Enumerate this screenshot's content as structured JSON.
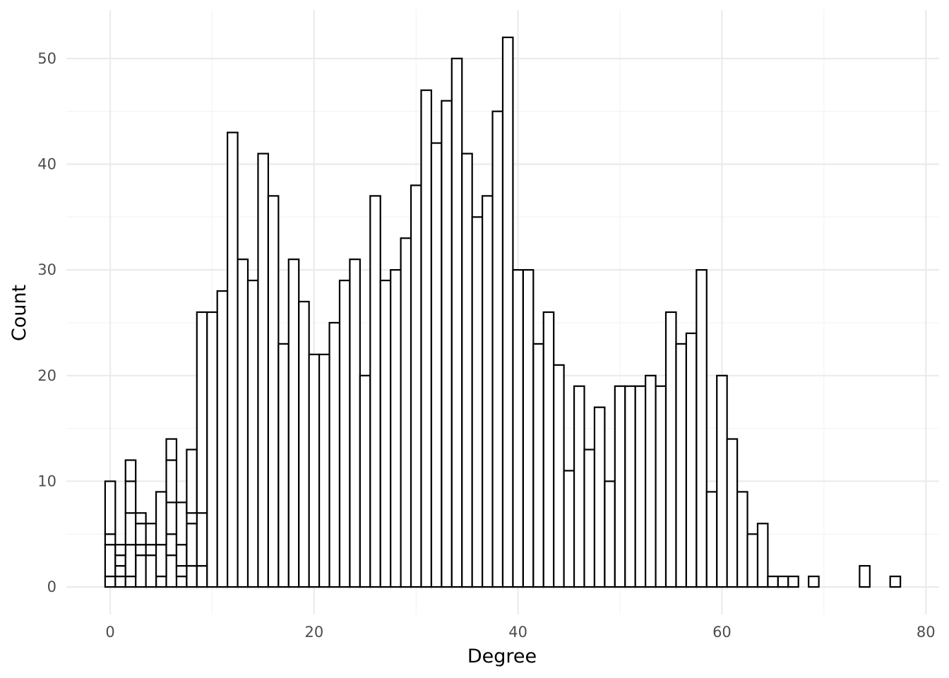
{
  "chart_data": {
    "type": "bar",
    "subtype": "histogram",
    "xlabel": "Degree",
    "ylabel": "Count",
    "xlim": [
      -4.3,
      81.3
    ],
    "ylim": [
      -2.6,
      54.6
    ],
    "x_ticks": [
      0,
      20,
      40,
      60,
      80
    ],
    "y_ticks": [
      0,
      10,
      20,
      30,
      40,
      50
    ],
    "grid": true,
    "bin_width": 1,
    "stacked": true,
    "series": [
      {
        "x": [
          0,
          1,
          2,
          3,
          4,
          5,
          6,
          7,
          8,
          9
        ],
        "values": [
          1,
          1,
          1,
          0,
          0,
          1,
          0,
          1,
          2,
          2
        ]
      },
      {
        "x": [
          0,
          1,
          2,
          3,
          4,
          5,
          6,
          7,
          8,
          9
        ],
        "values": [
          3,
          1,
          0,
          3,
          3,
          0,
          3,
          1,
          0,
          0
        ]
      },
      {
        "x": [
          0,
          1,
          2,
          3,
          4,
          5,
          6,
          7,
          8,
          9
        ],
        "values": [
          1,
          1,
          3,
          1,
          1,
          3,
          2,
          2,
          4,
          5
        ]
      },
      {
        "x": [
          0,
          1,
          2,
          3,
          4,
          5,
          6,
          7,
          8,
          9
        ],
        "values": [
          0,
          0,
          3,
          2,
          0,
          0,
          3,
          0,
          1,
          0
        ]
      },
      {
        "x": [
          0,
          1,
          2,
          3,
          4,
          5,
          6,
          7,
          8,
          9
        ],
        "values": [
          0,
          0,
          3,
          0,
          0,
          0,
          4,
          0,
          0,
          0
        ]
      },
      {
        "x": [
          0,
          1,
          2,
          3,
          4,
          5,
          6,
          7,
          8,
          9,
          10,
          11,
          12,
          13,
          14,
          15,
          16,
          17,
          18,
          19,
          20,
          21,
          22,
          23,
          24,
          25,
          26,
          27,
          28,
          29,
          30,
          31,
          32,
          33,
          34,
          35,
          36,
          37,
          38,
          39,
          40,
          41,
          42,
          43,
          44,
          45,
          46,
          47,
          48,
          49,
          50,
          51,
          52,
          53,
          54,
          55,
          56,
          57,
          58,
          59,
          60,
          61,
          62,
          63,
          64,
          65,
          66,
          67,
          69,
          74,
          77
        ],
        "values": [
          5,
          1,
          2,
          1,
          2,
          5,
          2,
          4,
          6,
          19,
          26,
          28,
          43,
          31,
          29,
          41,
          37,
          23,
          31,
          27,
          22,
          22,
          25,
          29,
          31,
          20,
          37,
          29,
          30,
          33,
          38,
          47,
          42,
          46,
          50,
          41,
          35,
          37,
          45,
          52,
          30,
          30,
          23,
          26,
          21,
          11,
          19,
          13,
          17,
          10,
          19,
          19,
          19,
          20,
          19,
          26,
          23,
          24,
          30,
          9,
          20,
          14,
          9,
          5,
          6,
          1,
          1,
          1,
          1,
          2,
          1
        ]
      }
    ]
  }
}
